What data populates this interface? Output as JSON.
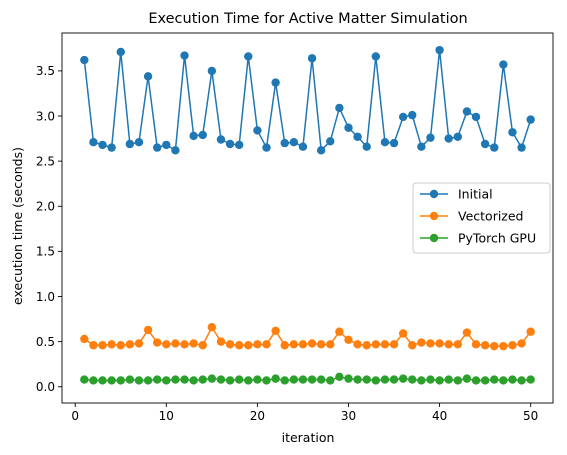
{
  "chart_data": {
    "type": "line",
    "title": "Execution Time for Active Matter Simulation",
    "xlabel": "iteration",
    "ylabel": "execution time (seconds)",
    "xlim": [
      -1.45,
      52.45
    ],
    "ylim": [
      -0.18,
      3.92
    ],
    "xticks": [
      0,
      10,
      20,
      30,
      40,
      50
    ],
    "xtick_labels": [
      "0",
      "10",
      "20",
      "30",
      "40",
      "50"
    ],
    "yticks": [
      0.0,
      0.5,
      1.0,
      1.5,
      2.0,
      2.5,
      3.0,
      3.5
    ],
    "ytick_labels": [
      "0.0",
      "0.5",
      "1.0",
      "1.5",
      "2.0",
      "2.5",
      "3.0",
      "3.5"
    ],
    "grid": false,
    "legend_position": "center-right",
    "marker": "circle",
    "x": [
      1,
      2,
      3,
      4,
      5,
      6,
      7,
      8,
      9,
      10,
      11,
      12,
      13,
      14,
      15,
      16,
      17,
      18,
      19,
      20,
      21,
      22,
      23,
      24,
      25,
      26,
      27,
      28,
      29,
      30,
      31,
      32,
      33,
      34,
      35,
      36,
      37,
      38,
      39,
      40,
      41,
      42,
      43,
      44,
      45,
      46,
      47,
      48,
      49,
      50
    ],
    "series": [
      {
        "name": "Initial",
        "color": "#1f77b4",
        "values": [
          3.62,
          2.71,
          2.68,
          2.65,
          3.71,
          2.69,
          2.71,
          3.44,
          2.65,
          2.68,
          2.62,
          3.67,
          2.78,
          2.79,
          3.5,
          2.74,
          2.69,
          2.68,
          3.66,
          2.84,
          2.65,
          3.37,
          2.7,
          2.71,
          2.66,
          3.64,
          2.62,
          2.72,
          3.09,
          2.87,
          2.77,
          2.66,
          3.66,
          2.71,
          2.7,
          2.99,
          3.01,
          2.66,
          2.76,
          3.73,
          2.75,
          2.77,
          3.05,
          2.99,
          2.69,
          2.65,
          3.57,
          2.82,
          2.65,
          2.96
        ]
      },
      {
        "name": "Vectorized",
        "color": "#ff7f0e",
        "values": [
          0.53,
          0.46,
          0.46,
          0.47,
          0.46,
          0.47,
          0.48,
          0.63,
          0.49,
          0.47,
          0.48,
          0.47,
          0.48,
          0.46,
          0.66,
          0.5,
          0.47,
          0.46,
          0.46,
          0.47,
          0.47,
          0.62,
          0.46,
          0.47,
          0.47,
          0.48,
          0.47,
          0.47,
          0.61,
          0.52,
          0.47,
          0.46,
          0.47,
          0.47,
          0.47,
          0.59,
          0.46,
          0.49,
          0.48,
          0.48,
          0.47,
          0.47,
          0.6,
          0.47,
          0.46,
          0.45,
          0.45,
          0.46,
          0.48,
          0.61
        ]
      },
      {
        "name": "PyTorch GPU",
        "color": "#2ca02c",
        "values": [
          0.08,
          0.07,
          0.07,
          0.07,
          0.07,
          0.08,
          0.07,
          0.07,
          0.08,
          0.07,
          0.08,
          0.08,
          0.07,
          0.08,
          0.09,
          0.08,
          0.07,
          0.08,
          0.07,
          0.08,
          0.07,
          0.09,
          0.07,
          0.08,
          0.08,
          0.08,
          0.08,
          0.07,
          0.11,
          0.09,
          0.08,
          0.08,
          0.07,
          0.08,
          0.08,
          0.09,
          0.08,
          0.07,
          0.08,
          0.07,
          0.08,
          0.07,
          0.09,
          0.07,
          0.07,
          0.08,
          0.07,
          0.08,
          0.07,
          0.08
        ]
      }
    ]
  }
}
